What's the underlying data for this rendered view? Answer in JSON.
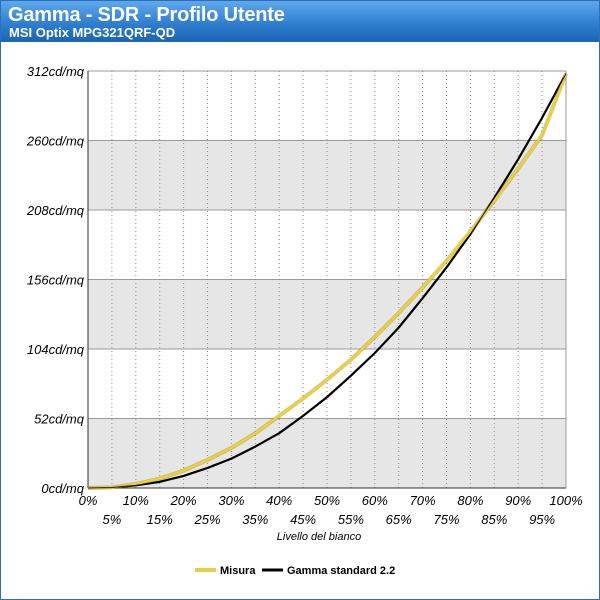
{
  "header": {
    "title": "Gamma - SDR - Profilo Utente",
    "subtitle": "MSI Optix MPG321QRF-QD"
  },
  "colors": {
    "header_top": "#5fa8ec",
    "header_bottom": "#1c63b3",
    "band": "#e6e6e6",
    "measure_line": "#f2d21c",
    "gamma_line": "#000000"
  },
  "chart_data": {
    "type": "line",
    "title": "Gamma - SDR - Profilo Utente",
    "subtitle": "MSI Optix MPG321QRF-QD",
    "xlabel": "Livello del bianco",
    "ylabel": "",
    "x_tick_labels": [
      "0%",
      "5%",
      "10%",
      "15%",
      "20%",
      "25%",
      "30%",
      "35%",
      "40%",
      "45%",
      "50%",
      "55%",
      "60%",
      "65%",
      "70%",
      "75%",
      "80%",
      "85%",
      "90%",
      "95%",
      "100%"
    ],
    "y_tick_labels": [
      "0cd/mq",
      "52cd/mq",
      "104cd/mq",
      "156cd/mq",
      "208cd/mq",
      "260cd/mq",
      "312cd/mq"
    ],
    "ylim": [
      0,
      312
    ],
    "xlim": [
      0,
      100
    ],
    "grid": true,
    "legend_position": "bottom-center",
    "x": [
      0,
      5,
      10,
      15,
      20,
      25,
      30,
      35,
      40,
      45,
      50,
      55,
      60,
      65,
      70,
      75,
      80,
      85,
      90,
      95,
      100
    ],
    "series": [
      {
        "name": "Misura",
        "values": [
          0,
          0.5,
          3,
          7,
          13,
          21,
          30,
          41,
          54,
          67,
          81,
          96,
          113,
          131,
          150,
          170,
          192,
          215,
          239,
          264,
          310
        ]
      },
      {
        "name": "Gamma standard 2.2",
        "values": [
          0,
          0.4,
          2,
          4.6,
          9,
          15,
          22,
          31,
          41,
          54,
          68,
          84,
          101,
          120,
          142,
          165,
          190,
          217,
          246,
          277,
          310
        ]
      }
    ]
  }
}
